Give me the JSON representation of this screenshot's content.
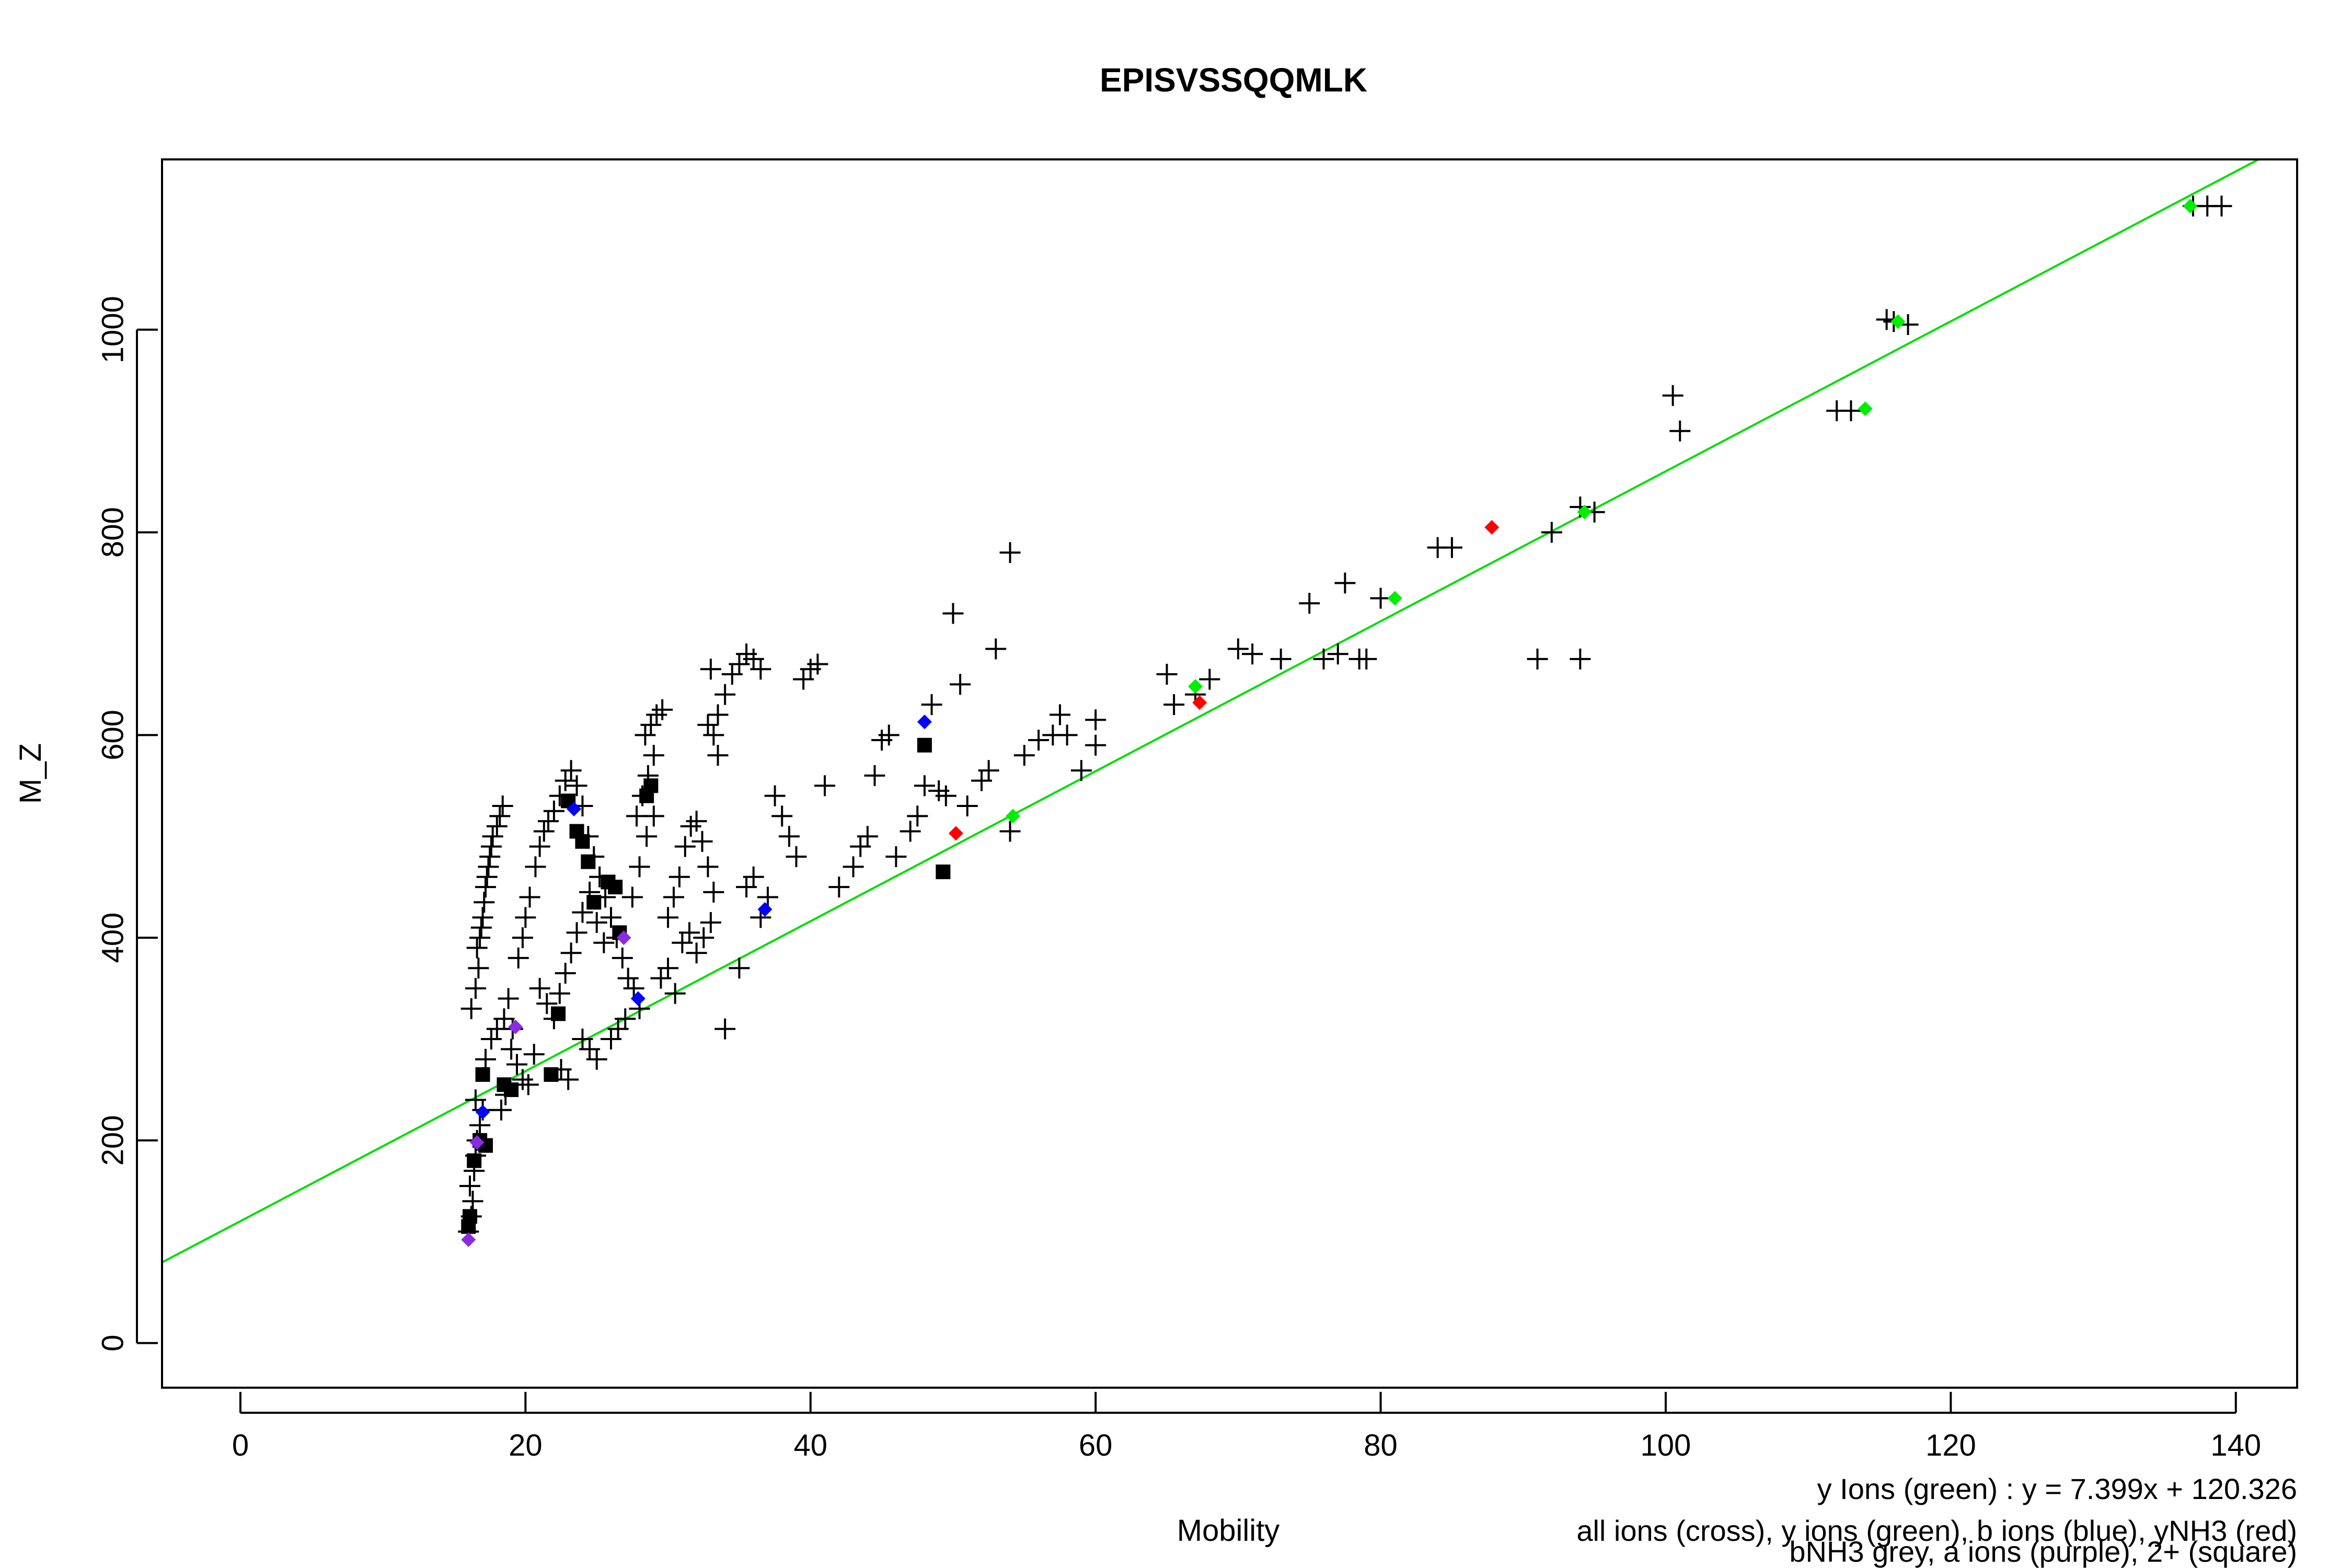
{
  "chart_data": {
    "type": "scatter",
    "title": "EPISVSSQQMLK",
    "xlabel": "Mobility",
    "ylabel": "M_Z",
    "xlim": [
      -5.5,
      144.3
    ],
    "ylim": [
      -44,
      1168
    ],
    "x_ticks": [
      "0",
      "20",
      "40",
      "60",
      "80",
      "100",
      "120",
      "140"
    ],
    "y_ticks": [
      "0",
      "200",
      "400",
      "600",
      "800",
      "1000"
    ],
    "grid": false,
    "colors": {
      "fit_line": "#00dd00",
      "all_ions": "#000000",
      "y_ions": "#00ee00",
      "b_ions": "#0000ff",
      "yNH3": "#ff0000",
      "a_ions": "#8a2be2",
      "2plus_square": "#000000"
    },
    "fit": {
      "slope": 7.399,
      "intercept": 120.326
    },
    "annotations": {
      "fit_text": "y Ions (green) : y = 7.399x + 120.326",
      "legend_line1": "all ions (cross), y ions (green), b ions (blue), yNH3 (red)",
      "legend_line2": "bNH3 grey, a ions (purple), 2+ (square)"
    },
    "series": [
      {
        "name": "all ions (cross)",
        "marker": "cross",
        "color": "#000000",
        "points": [
          [
            16,
            110
          ],
          [
            16.2,
            125
          ],
          [
            16.3,
            140
          ],
          [
            16.1,
            155
          ],
          [
            16.4,
            170
          ],
          [
            16.5,
            185
          ],
          [
            16.6,
            200
          ],
          [
            16.8,
            215
          ],
          [
            17,
            230
          ],
          [
            16.5,
            240
          ],
          [
            16.2,
            330
          ],
          [
            16.5,
            350
          ],
          [
            16.7,
            370
          ],
          [
            16.6,
            390
          ],
          [
            16.8,
            400
          ],
          [
            16.9,
            410
          ],
          [
            17,
            420
          ],
          [
            17.1,
            435
          ],
          [
            17.2,
            450
          ],
          [
            17.3,
            460
          ],
          [
            17.4,
            470
          ],
          [
            17.5,
            480
          ],
          [
            17.6,
            490
          ],
          [
            17.7,
            500
          ],
          [
            18,
            510
          ],
          [
            18.2,
            520
          ],
          [
            18.4,
            530
          ],
          [
            17.2,
            280
          ],
          [
            17.6,
            300
          ],
          [
            18,
            310
          ],
          [
            18.5,
            320
          ],
          [
            18.8,
            340
          ],
          [
            19,
            290
          ],
          [
            19.4,
            275
          ],
          [
            19.8,
            260
          ],
          [
            20.2,
            255
          ],
          [
            20.6,
            285
          ],
          [
            18.3,
            230
          ],
          [
            18.6,
            245
          ],
          [
            19.1,
            310
          ],
          [
            19.5,
            380
          ],
          [
            19.8,
            400
          ],
          [
            20,
            420
          ],
          [
            20.3,
            440
          ],
          [
            20.7,
            470
          ],
          [
            21,
            490
          ],
          [
            21.3,
            505
          ],
          [
            21.6,
            515
          ],
          [
            22,
            525
          ],
          [
            22.4,
            540
          ],
          [
            22.8,
            555
          ],
          [
            23.2,
            565
          ],
          [
            23.6,
            550
          ],
          [
            24,
            530
          ],
          [
            24.4,
            500
          ],
          [
            24.8,
            480
          ],
          [
            25.2,
            460
          ],
          [
            25.6,
            440
          ],
          [
            26,
            420
          ],
          [
            26.4,
            400
          ],
          [
            26.8,
            380
          ],
          [
            27.2,
            360
          ],
          [
            27.6,
            350
          ],
          [
            28,
            330
          ],
          [
            21,
            350
          ],
          [
            21.5,
            335
          ],
          [
            22,
            320
          ],
          [
            22.4,
            345
          ],
          [
            22.8,
            365
          ],
          [
            23.2,
            385
          ],
          [
            23.6,
            405
          ],
          [
            24,
            425
          ],
          [
            24.5,
            445
          ],
          [
            25,
            415
          ],
          [
            25.5,
            395
          ],
          [
            26,
            300
          ],
          [
            26.5,
            310
          ],
          [
            27,
            320
          ],
          [
            24,
            300
          ],
          [
            24.5,
            290
          ],
          [
            25,
            280
          ],
          [
            23,
            260
          ],
          [
            22.5,
            270
          ],
          [
            27.5,
            440
          ],
          [
            28,
            470
          ],
          [
            28.5,
            500
          ],
          [
            29,
            520
          ],
          [
            27.8,
            520
          ],
          [
            28.2,
            540
          ],
          [
            28.6,
            560
          ],
          [
            29,
            580
          ],
          [
            28.4,
            600
          ],
          [
            28.8,
            610
          ],
          [
            29.2,
            620
          ],
          [
            29.6,
            625
          ],
          [
            30,
            420
          ],
          [
            30.4,
            440
          ],
          [
            30.8,
            460
          ],
          [
            31.2,
            490
          ],
          [
            31.6,
            510
          ],
          [
            32,
            515
          ],
          [
            32.4,
            495
          ],
          [
            32.8,
            470
          ],
          [
            33.2,
            445
          ],
          [
            29.5,
            360
          ],
          [
            30,
            370
          ],
          [
            30.5,
            345
          ],
          [
            31,
            395
          ],
          [
            31.5,
            405
          ],
          [
            32,
            385
          ],
          [
            32.5,
            400
          ],
          [
            33,
            415
          ],
          [
            33.5,
            580
          ],
          [
            33.2,
            600
          ],
          [
            32.8,
            610
          ],
          [
            33.5,
            620
          ],
          [
            34,
            640
          ],
          [
            34.5,
            660
          ],
          [
            35,
            670
          ],
          [
            35.5,
            680
          ],
          [
            36,
            675
          ],
          [
            36.5,
            665
          ],
          [
            33,
            665
          ],
          [
            34,
            310
          ],
          [
            35,
            370
          ],
          [
            35.5,
            450
          ],
          [
            36,
            460
          ],
          [
            36.5,
            420
          ],
          [
            37,
            440
          ],
          [
            37.5,
            540
          ],
          [
            38,
            520
          ],
          [
            38.5,
            500
          ],
          [
            39,
            480
          ],
          [
            39.5,
            655
          ],
          [
            40,
            665
          ],
          [
            40.5,
            670
          ],
          [
            41,
            550
          ],
          [
            42,
            450
          ],
          [
            43,
            470
          ],
          [
            43.5,
            490
          ],
          [
            44,
            500
          ],
          [
            44.5,
            560
          ],
          [
            45,
            595
          ],
          [
            45.5,
            600
          ],
          [
            46,
            480
          ],
          [
            47,
            505
          ],
          [
            47.5,
            520
          ],
          [
            48,
            550
          ],
          [
            48.5,
            630
          ],
          [
            49,
            545
          ],
          [
            49.5,
            540
          ],
          [
            50,
            720
          ],
          [
            50.5,
            650
          ],
          [
            51,
            530
          ],
          [
            52,
            555
          ],
          [
            52.5,
            565
          ],
          [
            53,
            685
          ],
          [
            54,
            505
          ],
          [
            54,
            780
          ],
          [
            55,
            580
          ],
          [
            56,
            595
          ],
          [
            57,
            600
          ],
          [
            57.5,
            620
          ],
          [
            58,
            600
          ],
          [
            59,
            565
          ],
          [
            60,
            615
          ],
          [
            60,
            590
          ],
          [
            65,
            660
          ],
          [
            65.5,
            630
          ],
          [
            67,
            640
          ],
          [
            68,
            655
          ],
          [
            70,
            685
          ],
          [
            71,
            680
          ],
          [
            73,
            675
          ],
          [
            75,
            730
          ],
          [
            76,
            675
          ],
          [
            77,
            680
          ],
          [
            77.5,
            750
          ],
          [
            78.5,
            675
          ],
          [
            79,
            675
          ],
          [
            80,
            735
          ],
          [
            84,
            785
          ],
          [
            85,
            785
          ],
          [
            91,
            675
          ],
          [
            92,
            800
          ],
          [
            94,
            825
          ],
          [
            94,
            675
          ],
          [
            95,
            820
          ],
          [
            100.5,
            935
          ],
          [
            101,
            900
          ],
          [
            112,
            920
          ],
          [
            113,
            920
          ],
          [
            115.5,
            1010
          ],
          [
            116,
            1008
          ],
          [
            117,
            1005
          ],
          [
            137,
            1122
          ],
          [
            138,
            1122
          ],
          [
            139,
            1122
          ]
        ]
      },
      {
        "name": "2+ (square)",
        "marker": "square",
        "color": "#000000",
        "points": [
          [
            16,
            115
          ],
          [
            16.1,
            125
          ],
          [
            16.4,
            180
          ],
          [
            16.8,
            200
          ],
          [
            17.2,
            195
          ],
          [
            17,
            265
          ],
          [
            18.5,
            255
          ],
          [
            19,
            250
          ],
          [
            21.8,
            265
          ],
          [
            22.3,
            325
          ],
          [
            23,
            535
          ],
          [
            23.6,
            505
          ],
          [
            24,
            495
          ],
          [
            24.4,
            475
          ],
          [
            24.8,
            435
          ],
          [
            25.8,
            455
          ],
          [
            26.3,
            450
          ],
          [
            26.6,
            405
          ],
          [
            28.5,
            540
          ],
          [
            28.8,
            550
          ],
          [
            48,
            590
          ],
          [
            49.3,
            465
          ]
        ]
      },
      {
        "name": "y ions (green)",
        "marker": "diamond",
        "color": "#00ee00",
        "points": [
          [
            54.2,
            520
          ],
          [
            67,
            648
          ],
          [
            81,
            735
          ],
          [
            94.3,
            820
          ],
          [
            114,
            922
          ],
          [
            116.3,
            1008
          ],
          [
            136.8,
            1122
          ]
        ]
      },
      {
        "name": "b ions (blue)",
        "marker": "diamond",
        "color": "#0000ff",
        "points": [
          [
            17,
            228
          ],
          [
            23.4,
            527
          ],
          [
            27.9,
            340
          ],
          [
            36.8,
            428
          ],
          [
            48,
            613
          ]
        ]
      },
      {
        "name": "yNH3 (red)",
        "marker": "diamond",
        "color": "#ff0000",
        "points": [
          [
            50.2,
            503
          ],
          [
            67.3,
            632
          ],
          [
            87.8,
            805
          ]
        ]
      },
      {
        "name": "a ions (purple)",
        "marker": "diamond",
        "color": "#8a2be2",
        "points": [
          [
            16,
            102
          ],
          [
            16.6,
            198
          ],
          [
            19.3,
            312
          ],
          [
            26.9,
            400
          ]
        ]
      }
    ]
  }
}
